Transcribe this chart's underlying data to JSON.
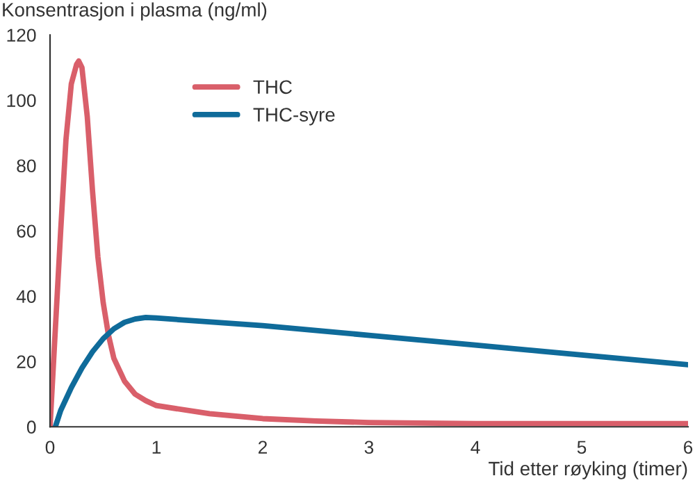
{
  "chart_data": {
    "type": "line",
    "ylabel": "Konsentrasjon i plasma (ng/ml)",
    "xlabel": "Tid etter røyking (timer)",
    "xlim": [
      0,
      6
    ],
    "xticks": [
      0,
      1,
      2,
      3,
      4,
      5,
      6
    ],
    "ylim": [
      0,
      120
    ],
    "yticks": [
      0,
      20,
      40,
      60,
      80,
      100,
      120
    ],
    "grid": false,
    "legend": "top",
    "marker": "none",
    "line_style": "solid",
    "series": [
      {
        "name": "THC",
        "color": "#d95f6a",
        "x": [
          0,
          0.05,
          0.1,
          0.15,
          0.2,
          0.25,
          0.27,
          0.3,
          0.35,
          0.4,
          0.45,
          0.5,
          0.55,
          0.6,
          0.7,
          0.8,
          0.9,
          1.0,
          1.5,
          2,
          2.5,
          3,
          4,
          5,
          6
        ],
        "values": [
          0,
          30,
          60,
          88,
          105,
          111,
          112,
          110,
          95,
          72,
          52,
          38,
          28,
          21,
          14,
          10,
          8,
          6.5,
          4,
          2.5,
          1.8,
          1.3,
          1,
          1,
          1
        ]
      },
      {
        "name": "THC-syre",
        "color": "#0f6b9a",
        "x": [
          0.05,
          0.1,
          0.2,
          0.3,
          0.4,
          0.5,
          0.6,
          0.7,
          0.8,
          0.9,
          1,
          2,
          3,
          4,
          5,
          6
        ],
        "values": [
          0,
          5,
          12,
          18,
          23,
          27,
          30,
          32,
          33,
          33.5,
          33.3,
          31,
          28,
          25,
          22,
          19
        ]
      }
    ]
  }
}
